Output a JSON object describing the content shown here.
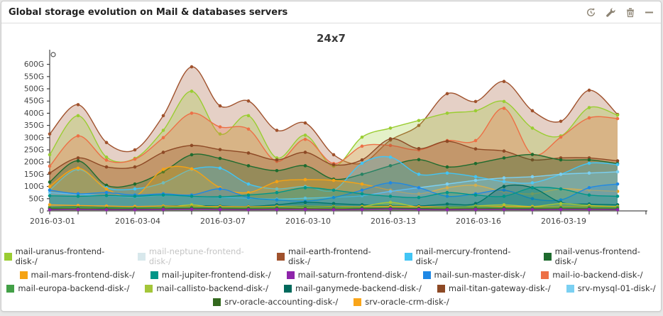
{
  "panel": {
    "title": "Global storage evolution on Mail & databases servers",
    "toolbar": {
      "refresh_tooltip": "refresh",
      "edit_tooltip": "edit",
      "delete_tooltip": "delete",
      "collapse_tooltip": "collapse"
    },
    "icon_color": "#8c8373"
  },
  "chart_data": {
    "type": "area",
    "title": "24x7",
    "grid": false,
    "legend_position": "bottom",
    "unit": "G",
    "ylim": [
      0,
      660
    ],
    "y_ticks": [
      {
        "value": 0,
        "label": "0"
      },
      {
        "value": 50,
        "label": "50G"
      },
      {
        "value": 100,
        "label": "100G"
      },
      {
        "value": 150,
        "label": "150G"
      },
      {
        "value": 200,
        "label": "200G"
      },
      {
        "value": 250,
        "label": "250G"
      },
      {
        "value": 300,
        "label": "300G"
      },
      {
        "value": 350,
        "label": "350G"
      },
      {
        "value": 400,
        "label": "400G"
      },
      {
        "value": 450,
        "label": "450G"
      },
      {
        "value": 500,
        "label": "500G"
      },
      {
        "value": 550,
        "label": "550G"
      },
      {
        "value": 600,
        "label": "600G"
      }
    ],
    "x": [
      "2016-03-01",
      "2016-03-02",
      "2016-03-03",
      "2016-03-04",
      "2016-03-05",
      "2016-03-06",
      "2016-03-07",
      "2016-03-08",
      "2016-03-09",
      "2016-03-10",
      "2016-03-11",
      "2016-03-12",
      "2016-03-13",
      "2016-03-14",
      "2016-03-15",
      "2016-03-16",
      "2016-03-17",
      "2016-03-18",
      "2016-03-19",
      "2016-03-20",
      "2016-03-21"
    ],
    "x_labeled_every": 3,
    "stray_marker": {
      "x_index": 0,
      "value": 640
    },
    "series": [
      {
        "name": "mail-uranus-frontend-disk-/",
        "color": "#9ACD32",
        "visible": true,
        "values": [
          230,
          390,
          220,
          215,
          330,
          490,
          315,
          390,
          217,
          310,
          183,
          302,
          339,
          370,
          400,
          410,
          448,
          339,
          307,
          423,
          392
        ]
      },
      {
        "name": "mail-neptune-frontend-disk-/",
        "color": "#D8E8EC",
        "visible": false,
        "values": []
      },
      {
        "name": "mail-earth-frontend-disk-/",
        "color": "#A0522D",
        "visible": true,
        "values": [
          315,
          435,
          280,
          250,
          390,
          590,
          430,
          450,
          330,
          360,
          230,
          195,
          290,
          350,
          480,
          448,
          530,
          410,
          367,
          494,
          395
        ]
      },
      {
        "name": "mail-mercury-frontend-disk-/",
        "color": "#42C5F5",
        "visible": true,
        "values": [
          85,
          170,
          95,
          90,
          115,
          170,
          175,
          110,
          90,
          100,
          85,
          195,
          220,
          150,
          155,
          140,
          120,
          115,
          150,
          195,
          190
        ]
      },
      {
        "name": "mail-venus-frontend-disk-/",
        "color": "#1E6B2E",
        "visible": true,
        "values": [
          118,
          205,
          105,
          110,
          160,
          230,
          215,
          185,
          165,
          185,
          130,
          150,
          185,
          210,
          180,
          194,
          217,
          231,
          209,
          209,
          194
        ]
      },
      {
        "name": "mail-mars-frontend-disk-/",
        "color": "#F5A314",
        "visible": true,
        "values": [
          100,
          175,
          90,
          60,
          170,
          172,
          95,
          75,
          120,
          128,
          125,
          110,
          85,
          70,
          95,
          105,
          78,
          70,
          90,
          85,
          80
        ]
      },
      {
        "name": "mail-jupiter-frontend-disk-/",
        "color": "#009688",
        "visible": true,
        "values": [
          62,
          60,
          63,
          60,
          65,
          60,
          58,
          65,
          75,
          95,
          85,
          70,
          60,
          55,
          75,
          65,
          60,
          95,
          90,
          65,
          60
        ]
      },
      {
        "name": "mail-saturn-frontend-disk-/",
        "color": "#8E24AA",
        "visible": true,
        "values": [
          5,
          6,
          5,
          5,
          6,
          7,
          6,
          5,
          6,
          6,
          5,
          6,
          8,
          6,
          5,
          6,
          6,
          5,
          6,
          6,
          5
        ]
      },
      {
        "name": "mail-sun-master-disk-/",
        "color": "#1E88E5",
        "visible": true,
        "values": [
          85,
          70,
          75,
          65,
          70,
          65,
          90,
          55,
          45,
          40,
          55,
          85,
          115,
          95,
          60,
          70,
          85,
          50,
          45,
          95,
          110
        ]
      },
      {
        "name": "mail-io-backend-disk-/",
        "color": "#ED7046",
        "visible": true,
        "values": [
          183,
          307,
          208,
          212,
          300,
          400,
          344,
          335,
          203,
          293,
          194,
          265,
          268,
          250,
          288,
          288,
          420,
          231,
          302,
          381,
          378
        ]
      },
      {
        "name": "mail-europa-backend-disk-/",
        "color": "#43A047",
        "visible": true,
        "values": [
          12,
          14,
          12,
          12,
          15,
          16,
          14,
          13,
          15,
          18,
          16,
          14,
          13,
          12,
          15,
          16,
          14,
          13,
          15,
          16,
          14
        ]
      },
      {
        "name": "mail-callisto-backend-disk-/",
        "color": "#A4C639",
        "visible": true,
        "values": [
          8,
          10,
          9,
          8,
          12,
          25,
          10,
          9,
          10,
          12,
          10,
          18,
          35,
          15,
          12,
          20,
          25,
          18,
          30,
          22,
          18
        ]
      },
      {
        "name": "mail-ganymede-backend-disk-/",
        "color": "#00695C",
        "visible": true,
        "values": [
          15,
          18,
          15,
          16,
          20,
          22,
          20,
          18,
          25,
          35,
          30,
          25,
          22,
          20,
          28,
          30,
          100,
          95,
          35,
          28,
          25
        ]
      },
      {
        "name": "mail-titan-gateway-disk-/",
        "color": "#8D4925",
        "visible": true,
        "values": [
          155,
          217,
          180,
          180,
          240,
          268,
          251,
          237,
          209,
          240,
          189,
          209,
          295,
          255,
          285,
          254,
          245,
          209,
          217,
          217,
          205
        ]
      },
      {
        "name": "srv-mysql-01-disk-/",
        "color": "#7BD0F2",
        "visible": true,
        "values": [
          75,
          68,
          62,
          58,
          64,
          60,
          56,
          52,
          48,
          52,
          56,
          62,
          80,
          95,
          110,
          125,
          135,
          140,
          150,
          155,
          160
        ]
      },
      {
        "name": "srv-oracle-accounting-disk-/",
        "color": "#33691E",
        "visible": true,
        "values": [
          8,
          9,
          8,
          8,
          9,
          10,
          9,
          8,
          9,
          9,
          8,
          9,
          10,
          9,
          8,
          9,
          9,
          8,
          9,
          9,
          8
        ]
      },
      {
        "name": "srv-oracle-crm-disk-/",
        "color": "#F9A51A",
        "visible": true,
        "values": [
          25,
          22,
          20,
          18,
          20,
          19,
          18,
          17,
          18,
          19,
          18,
          17,
          18,
          17,
          16,
          17,
          18,
          16,
          17,
          18,
          16
        ]
      }
    ],
    "legend_rows": [
      [
        0,
        1,
        2,
        3,
        4
      ],
      [
        5,
        6,
        7,
        8,
        9
      ],
      [
        10,
        11,
        12,
        13,
        14
      ],
      [
        15,
        16
      ]
    ]
  }
}
